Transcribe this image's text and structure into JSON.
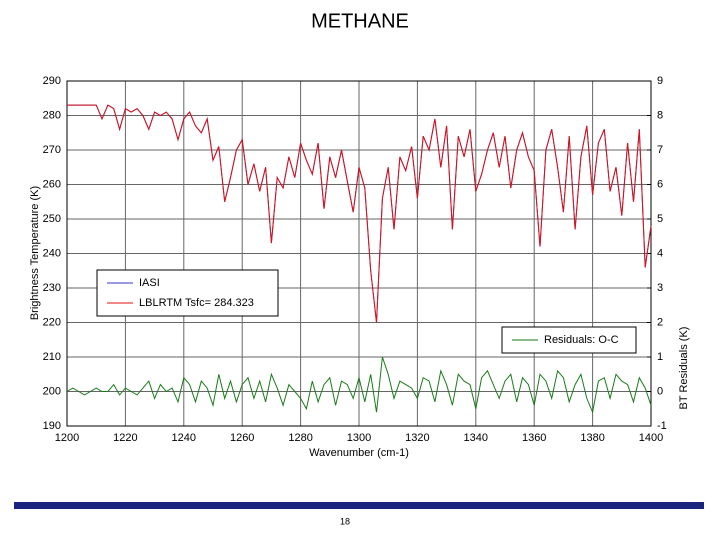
{
  "chart_data": {
    "type": "line",
    "title": "METHANE",
    "x_label": "Wavenumber  (cm-1)",
    "y_label": "Brightness Temperature  (K)",
    "y2_label": "BT Residuals  (K)",
    "x": [
      1200,
      1202,
      1204,
      1206,
      1208,
      1210,
      1212,
      1214,
      1216,
      1218,
      1220,
      1222,
      1224,
      1226,
      1228,
      1230,
      1232,
      1234,
      1236,
      1238,
      1240,
      1242,
      1244,
      1246,
      1248,
      1250,
      1252,
      1254,
      1256,
      1258,
      1260,
      1262,
      1264,
      1266,
      1268,
      1270,
      1272,
      1274,
      1276,
      1278,
      1280,
      1282,
      1284,
      1286,
      1288,
      1290,
      1292,
      1294,
      1296,
      1298,
      1300,
      1302,
      1304,
      1306,
      1308,
      1310,
      1312,
      1314,
      1316,
      1318,
      1320,
      1322,
      1324,
      1326,
      1328,
      1330,
      1332,
      1334,
      1336,
      1338,
      1340,
      1342,
      1344,
      1346,
      1348,
      1350,
      1352,
      1354,
      1356,
      1358,
      1360,
      1362,
      1364,
      1366,
      1368,
      1370,
      1372,
      1374,
      1376,
      1378,
      1380,
      1382,
      1384,
      1386,
      1388,
      1390,
      1392,
      1394,
      1396,
      1398,
      1400
    ],
    "series": [
      {
        "name": "IASI",
        "color": "#3333cc",
        "values": [
          283,
          283,
          283,
          283,
          283,
          283,
          279,
          283,
          282,
          276,
          282,
          281,
          282,
          280,
          276,
          281,
          280,
          281,
          279,
          273,
          279,
          281,
          277,
          275,
          279,
          267,
          271,
          255,
          262,
          270,
          273,
          260,
          266,
          258,
          265,
          243,
          262,
          259,
          268,
          262,
          272,
          267,
          263,
          272,
          253,
          268,
          262,
          270,
          261,
          252,
          265,
          259,
          235,
          220,
          256,
          265,
          247,
          268,
          264,
          271,
          256,
          274,
          270,
          279,
          265,
          277,
          247,
          274,
          268,
          276,
          258,
          263,
          270,
          275,
          265,
          274,
          259,
          270,
          275,
          268,
          264,
          242,
          270,
          276,
          265,
          252,
          274,
          247,
          268,
          277,
          257,
          272,
          276,
          258,
          265,
          251,
          272,
          255,
          276,
          236,
          248
        ]
      },
      {
        "name": "LBLRTM  Tsfc= 284.323",
        "color": "#e01010",
        "values": [
          283,
          283,
          283,
          283,
          283,
          283,
          279,
          283,
          282,
          276,
          282,
          281,
          282,
          280,
          276,
          281,
          280,
          281,
          279,
          273,
          279,
          281,
          277,
          275,
          279,
          267,
          271,
          255,
          262,
          270,
          273,
          260,
          266,
          258,
          265,
          243,
          262,
          259,
          268,
          262,
          272,
          267,
          263,
          272,
          253,
          268,
          262,
          270,
          261,
          252,
          265,
          259,
          235,
          220,
          256,
          265,
          247,
          268,
          264,
          271,
          256,
          274,
          270,
          279,
          265,
          277,
          247,
          274,
          268,
          276,
          258,
          263,
          270,
          275,
          265,
          274,
          259,
          270,
          275,
          268,
          264,
          242,
          270,
          276,
          265,
          252,
          274,
          247,
          268,
          277,
          257,
          272,
          276,
          258,
          265,
          251,
          272,
          255,
          276,
          236,
          248
        ]
      },
      {
        "name": "Residuals: O-C",
        "color": "#1a7a1a",
        "axis": "y2",
        "values": [
          0,
          0.1,
          0,
          -0.1,
          0,
          0.1,
          0,
          0,
          0.2,
          -0.1,
          0.1,
          0,
          -0.1,
          0.1,
          0.3,
          -0.2,
          0.2,
          0,
          0.1,
          -0.3,
          0.4,
          0.2,
          -0.3,
          0.3,
          0.1,
          -0.4,
          0.5,
          -0.2,
          0.3,
          -0.3,
          0.2,
          0.4,
          -0.2,
          0.3,
          -0.3,
          0.5,
          0.1,
          -0.4,
          0.2,
          0,
          -0.2,
          -0.5,
          0.3,
          -0.3,
          0.2,
          0.4,
          -0.4,
          0.3,
          0.2,
          -0.2,
          0.4,
          -0.3,
          0.5,
          -0.6,
          1,
          0.5,
          -0.2,
          0.3,
          0.2,
          0.1,
          -0.2,
          0.4,
          0.3,
          -0.3,
          0.6,
          0.2,
          -0.4,
          0.5,
          0.3,
          0.2,
          -0.5,
          0.4,
          0.6,
          0.2,
          -0.2,
          0.3,
          0.5,
          -0.3,
          0.4,
          0.2,
          -0.4,
          0.5,
          0.3,
          -0.2,
          0.6,
          0.4,
          -0.3,
          0.2,
          0.5,
          -0.2,
          -0.6,
          0.3,
          0.4,
          -0.2,
          0.5,
          0.3,
          0.2,
          -0.3,
          0.4,
          0.1,
          -0.4
        ]
      }
    ],
    "xlim": [
      1200,
      1400
    ],
    "xticks": [
      1200,
      1220,
      1240,
      1260,
      1280,
      1300,
      1320,
      1340,
      1360,
      1380,
      1400
    ],
    "ylim": [
      190,
      290
    ],
    "yticks": [
      190,
      200,
      210,
      220,
      230,
      240,
      250,
      260,
      270,
      280,
      290
    ],
    "y2lim": [
      -1,
      9
    ],
    "y2ticks": [
      -1,
      0,
      1,
      2,
      3,
      4,
      5,
      6,
      7,
      8,
      9
    ],
    "grid": true
  },
  "footer": {
    "page_number": "18"
  }
}
